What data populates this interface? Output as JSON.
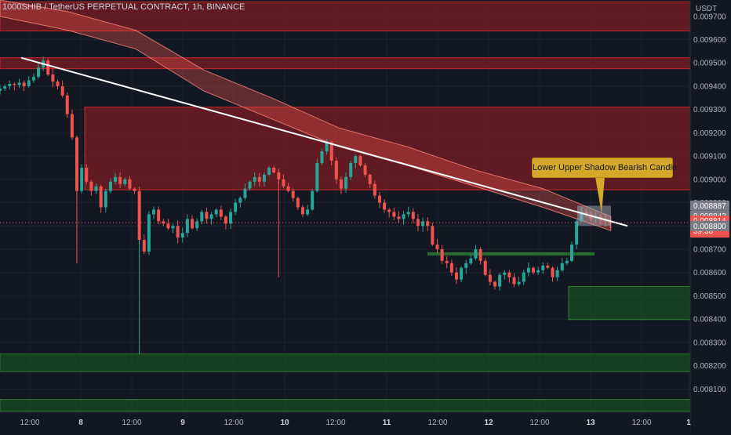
{
  "header": {
    "title": "1000SHIB / TetherUS PERPETUAL CONTRACT, 1h, BINANCE"
  },
  "annotation": {
    "text": "Lower Upper Shadow Bearish Candle"
  },
  "colors": {
    "background": "#131722",
    "bull": "#26a69a",
    "bear": "#ef5350",
    "resistance_zone": "#7a1d22",
    "support_zone": "#1b5e20",
    "trendline": "#ffffff",
    "ma_band": "#ef5350",
    "annotation": "#d4a82a"
  },
  "chart_data": {
    "type": "candlestick",
    "title": "1000SHIB / TetherUS PERPETUAL CONTRACT, 1h, BINANCE",
    "y_unit": "USDT",
    "ylim": [
      0.008,
      0.00977
    ],
    "y_ticks": [
      "0.009700",
      "0.009600",
      "0.009500",
      "0.009400",
      "0.009300",
      "0.009200",
      "0.009100",
      "0.009000",
      "0.008900",
      "0.008800",
      "0.008700",
      "0.008600",
      "0.008500",
      "0.008400",
      "0.008300",
      "0.008200",
      "0.008100"
    ],
    "x_tick_labels": [
      "12:00",
      "8",
      "12:00",
      "9",
      "12:00",
      "10",
      "12:00",
      "11",
      "12:00",
      "12",
      "12:00",
      "13",
      "12:00",
      "1"
    ],
    "price_tags": [
      {
        "label": "0.008887",
        "value": 0.008887,
        "style": "grey"
      },
      {
        "label": "0.008843",
        "value": 0.008843,
        "style": "grey"
      },
      {
        "label": "0.008814",
        "sublabel": "39:38",
        "value": 0.008814,
        "style": "current"
      },
      {
        "label": "0.008800",
        "value": 0.0088,
        "style": "grey"
      }
    ],
    "resistance_zones": [
      [
        0.009637,
        0.009762
      ],
      [
        0.009475,
        0.009522
      ],
      [
        0.008955,
        0.00931
      ]
    ],
    "support_zones": [
      [
        0.008175,
        0.00825
      ],
      [
        0.008005,
        0.008055
      ],
      [
        0.008398,
        0.00854
      ]
    ],
    "support_line": {
      "x_from": "11 12:00",
      "x_to": "13",
      "value": 0.00868
    },
    "trendline": [
      {
        "x": "7 12:00",
        "y": 0.009522
      },
      {
        "x": "13 12:00",
        "y": 0.0088
      }
    ],
    "highlight_box": {
      "high": 0.008887,
      "low": 0.0088,
      "label": "Lower Upper Shadow Bearish Candle"
    },
    "ma_band_upper": [
      0.00977,
      0.00972,
      0.00964,
      0.00947,
      0.00935,
      0.00922,
      0.00914,
      0.00904,
      0.00896,
      0.00884
    ],
    "ma_band_lower": [
      0.0097,
      0.00964,
      0.00956,
      0.00938,
      0.00926,
      0.00914,
      0.00906,
      0.00897,
      0.00888,
      0.00878
    ],
    "closes": [
      0.00939,
      0.0094,
      0.00941,
      0.009405,
      0.009415,
      0.0094,
      0.009425,
      0.00944,
      0.00948,
      0.00951,
      0.00945,
      0.00942,
      0.0094,
      0.00936,
      0.00928,
      0.00918,
      0.00895,
      0.00905,
      0.00899,
      0.00895,
      0.00897,
      0.00888,
      0.00895,
      0.00899,
      0.00901,
      0.00898,
      0.009,
      0.00896,
      0.00895,
      0.00874,
      0.00869,
      0.00885,
      0.00887,
      0.00882,
      0.00881,
      0.00879,
      0.0088,
      0.00875,
      0.00877,
      0.00883,
      0.00879,
      0.00882,
      0.00886,
      0.00883,
      0.00885,
      0.00887,
      0.00884,
      0.00881,
      0.00886,
      0.0089,
      0.00892,
      0.00896,
      0.00899,
      0.00901,
      0.00899,
      0.00902,
      0.00905,
      0.00903,
      0.009,
      0.00897,
      0.00895,
      0.00892,
      0.00888,
      0.00885,
      0.00887,
      0.00895,
      0.00907,
      0.00912,
      0.00916,
      0.00908,
      0.009,
      0.00896,
      0.00901,
      0.00907,
      0.0091,
      0.00906,
      0.00902,
      0.00898,
      0.00893,
      0.0089,
      0.00887,
      0.00886,
      0.00884,
      0.00883,
      0.00885,
      0.00886,
      0.00883,
      0.0088,
      0.00882,
      0.0088,
      0.00872,
      0.0087,
      0.00865,
      0.00864,
      0.0086,
      0.00857,
      0.00862,
      0.00864,
      0.00866,
      0.0087,
      0.00865,
      0.00859,
      0.00856,
      0.00854,
      0.00859,
      0.0086,
      0.00858,
      0.00855,
      0.00856,
      0.0086,
      0.00862,
      0.0086,
      0.00861,
      0.00863,
      0.00862,
      0.00858,
      0.00861,
      0.00864,
      0.00865,
      0.00872,
      0.00882,
      0.00886,
      0.00885,
      0.00883,
      0.00884,
      0.008825,
      0.00882,
      0.008814
    ]
  }
}
